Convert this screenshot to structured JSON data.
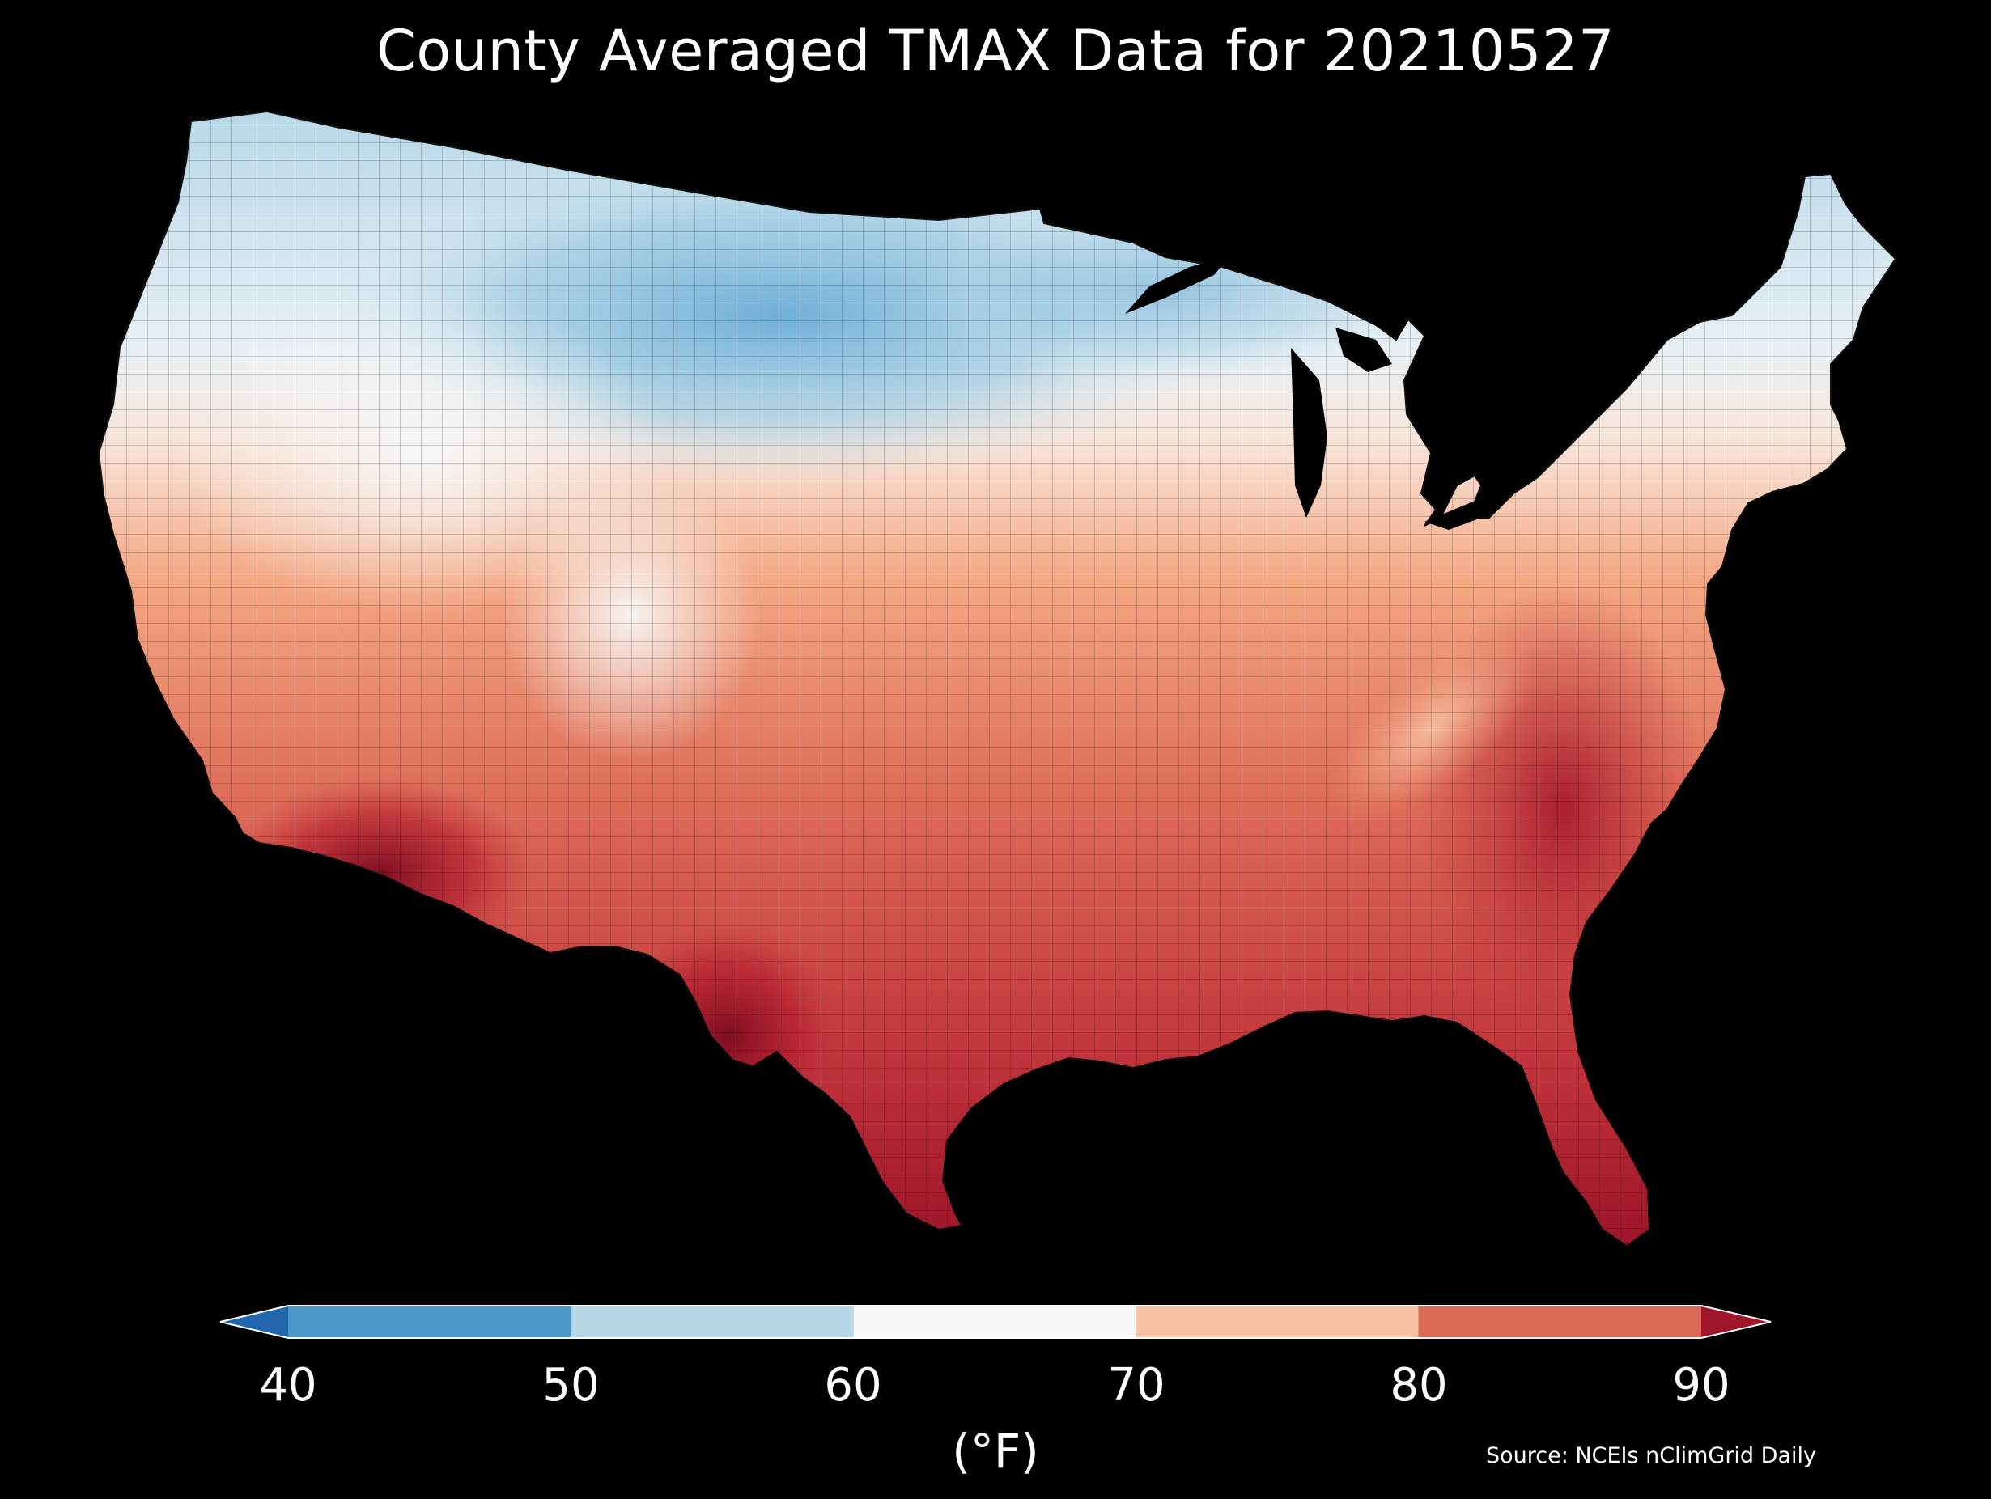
{
  "title": "County Averaged TMAX Data for 20210527",
  "colorbar": {
    "ticks": [
      "40",
      "50",
      "60",
      "70",
      "80",
      "90"
    ],
    "units": "(°F)",
    "min": 40,
    "max": 90,
    "bins": [
      {
        "from": 40,
        "to": 50,
        "color": "#4a97c8"
      },
      {
        "from": 50,
        "to": 60,
        "color": "#b6d7e8"
      },
      {
        "from": 60,
        "to": 70,
        "color": "#f6f6f6"
      },
      {
        "from": 70,
        "to": 80,
        "color": "#f8c2a5"
      },
      {
        "from": 80,
        "to": 90,
        "color": "#dd6a57"
      }
    ],
    "under_color": "#2166ac",
    "over_color": "#9f1529"
  },
  "source": "Source: NCEIs nClimGrid Daily",
  "map": {
    "region": "Contiguous United States (county level)",
    "variable": "TMAX",
    "date": "20210527"
  }
}
